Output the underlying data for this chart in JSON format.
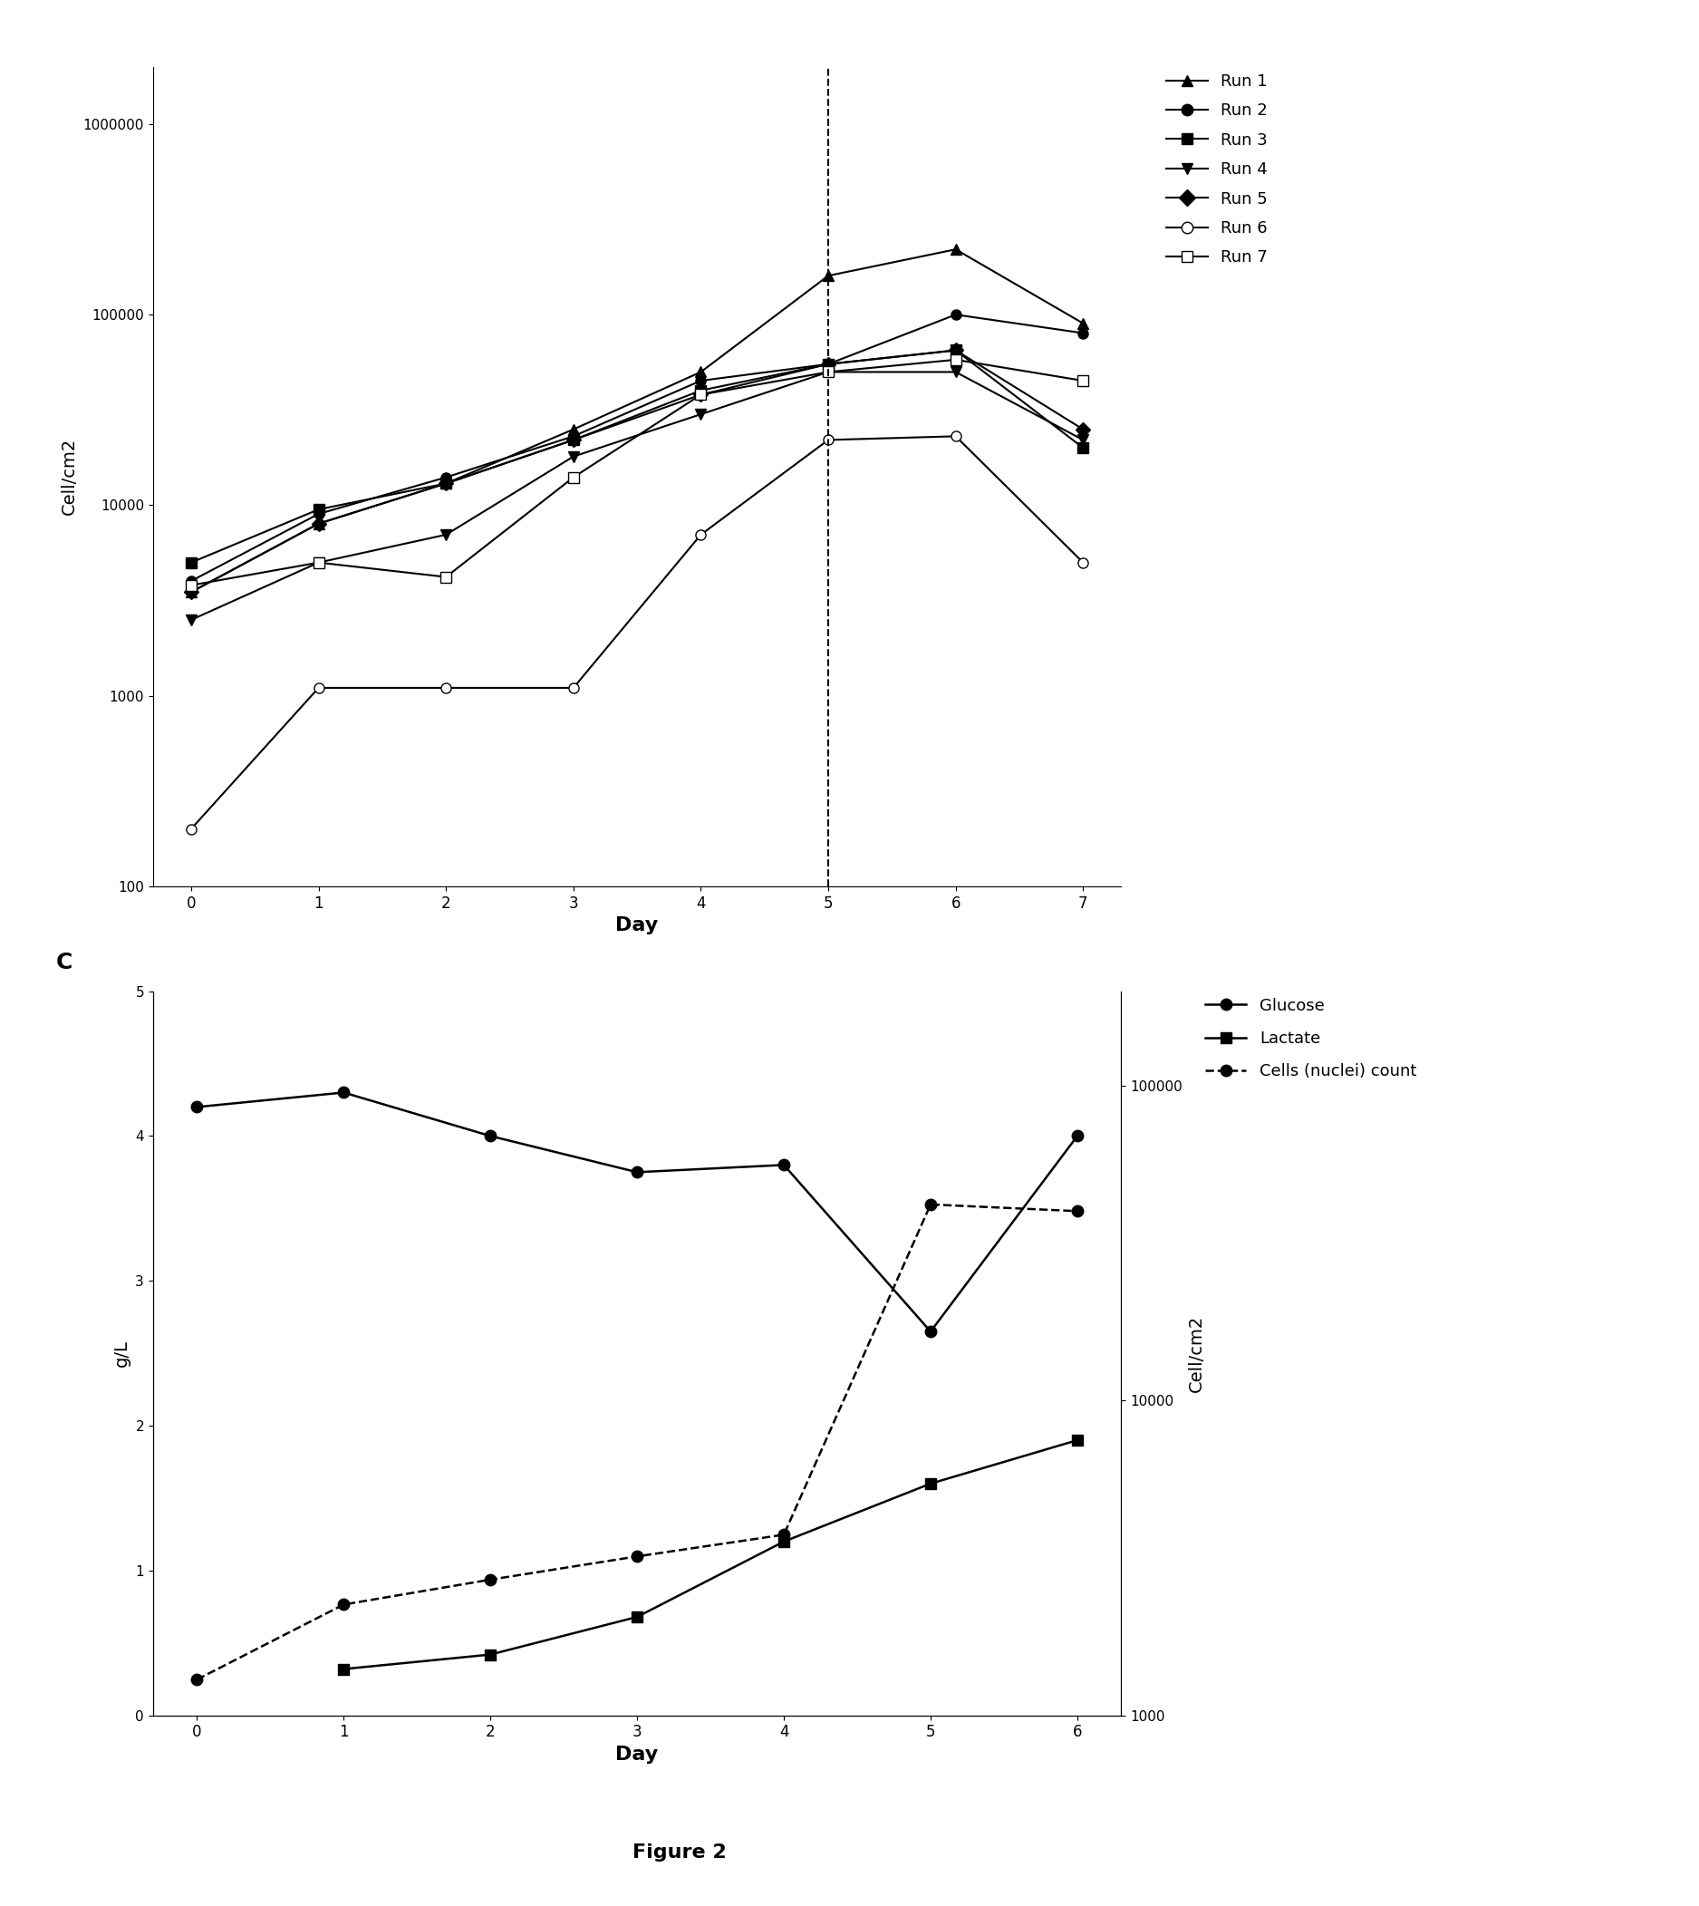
{
  "panel_c": {
    "runs": {
      "Run 1": {
        "x": [
          0,
          1,
          2,
          3,
          4,
          5,
          6,
          7
        ],
        "y": [
          3500,
          8000,
          13000,
          25000,
          50000,
          160000,
          220000,
          90000
        ],
        "marker": "^",
        "linestyle": "-",
        "markerfacecolor": "black"
      },
      "Run 2": {
        "x": [
          0,
          1,
          2,
          3,
          4,
          5,
          6,
          7
        ],
        "y": [
          4000,
          9000,
          14000,
          23000,
          45000,
          55000,
          100000,
          80000
        ],
        "marker": "o",
        "linestyle": "-",
        "markerfacecolor": "black"
      },
      "Run 3": {
        "x": [
          0,
          1,
          2,
          3,
          4,
          5,
          6,
          7
        ],
        "y": [
          5000,
          9500,
          13000,
          22000,
          40000,
          55000,
          65000,
          20000
        ],
        "marker": "s",
        "linestyle": "-",
        "markerfacecolor": "black"
      },
      "Run 4": {
        "x": [
          0,
          1,
          2,
          3,
          4,
          5,
          6,
          7
        ],
        "y": [
          2500,
          5000,
          7000,
          18000,
          30000,
          50000,
          50000,
          22000
        ],
        "marker": "v",
        "linestyle": "-",
        "markerfacecolor": "black"
      },
      "Run 5": {
        "x": [
          0,
          1,
          2,
          3,
          4,
          5,
          6,
          7
        ],
        "y": [
          3500,
          8000,
          13000,
          22000,
          38000,
          55000,
          65000,
          25000
        ],
        "marker": "D",
        "linestyle": "-",
        "markerfacecolor": "black"
      },
      "Run 6": {
        "x": [
          0,
          1,
          2,
          3,
          4,
          5,
          6,
          7
        ],
        "y": [
          200,
          1100,
          1100,
          1100,
          7000,
          22000,
          23000,
          5000
        ],
        "marker": "o",
        "linestyle": "-",
        "markerfacecolor": "white"
      },
      "Run 7": {
        "x": [
          0,
          1,
          2,
          3,
          4,
          5,
          6,
          7
        ],
        "y": [
          3800,
          5000,
          4200,
          14000,
          38000,
          50000,
          58000,
          45000
        ],
        "marker": "s",
        "linestyle": "-",
        "markerfacecolor": "white"
      }
    },
    "xlabel": "Day",
    "ylabel": "Cell/cm2",
    "ylim": [
      100,
      2000000
    ],
    "xlim": [
      -0.3,
      7.3
    ],
    "xticks": [
      0,
      1,
      2,
      3,
      4,
      5,
      6,
      7
    ],
    "ytick_vals": [
      100,
      1000,
      10000,
      100000,
      1000000
    ],
    "ytick_labels": [
      "100",
      "1000",
      "10000",
      "100000",
      "1000000"
    ],
    "infection_day": 5,
    "panel_label": "C"
  },
  "panel_d": {
    "glucose": {
      "x": [
        0,
        1,
        2,
        3,
        4,
        5,
        6
      ],
      "y": [
        4.2,
        4.3,
        4.0,
        3.75,
        3.8,
        2.65,
        4.0
      ],
      "marker": "o",
      "linestyle": "-",
      "label": "Glucose"
    },
    "lactate": {
      "x": [
        1,
        2,
        3,
        4,
        5,
        6
      ],
      "y": [
        0.32,
        0.42,
        0.68,
        1.2,
        1.6,
        1.9
      ],
      "marker": "s",
      "linestyle": "-",
      "label": "Lactate"
    },
    "cells": {
      "x": [
        0,
        1,
        2,
        3,
        4,
        5,
        6
      ],
      "y": [
        1300,
        2250,
        2700,
        3200,
        3750,
        42000,
        40000
      ],
      "marker": "o",
      "linestyle": "--",
      "label": "Cells (nuclei) count"
    },
    "xlabel": "Day",
    "ylabel_left": "g/L",
    "ylabel_right": "Cell/cm2",
    "ylim_left": [
      0,
      5
    ],
    "ylim_right": [
      1000,
      200000
    ],
    "xlim": [
      -0.3,
      6.3
    ],
    "xticks": [
      0,
      1,
      2,
      3,
      4,
      5,
      6
    ],
    "yticks_left": [
      0,
      1,
      2,
      3,
      4,
      5
    ],
    "ytick_right_vals": [
      1000,
      10000,
      100000
    ],
    "ytick_right_labels": [
      "1000",
      "10000",
      "100000"
    ]
  },
  "figure_label": "Figure 2",
  "color": "#000000",
  "background": "#ffffff"
}
